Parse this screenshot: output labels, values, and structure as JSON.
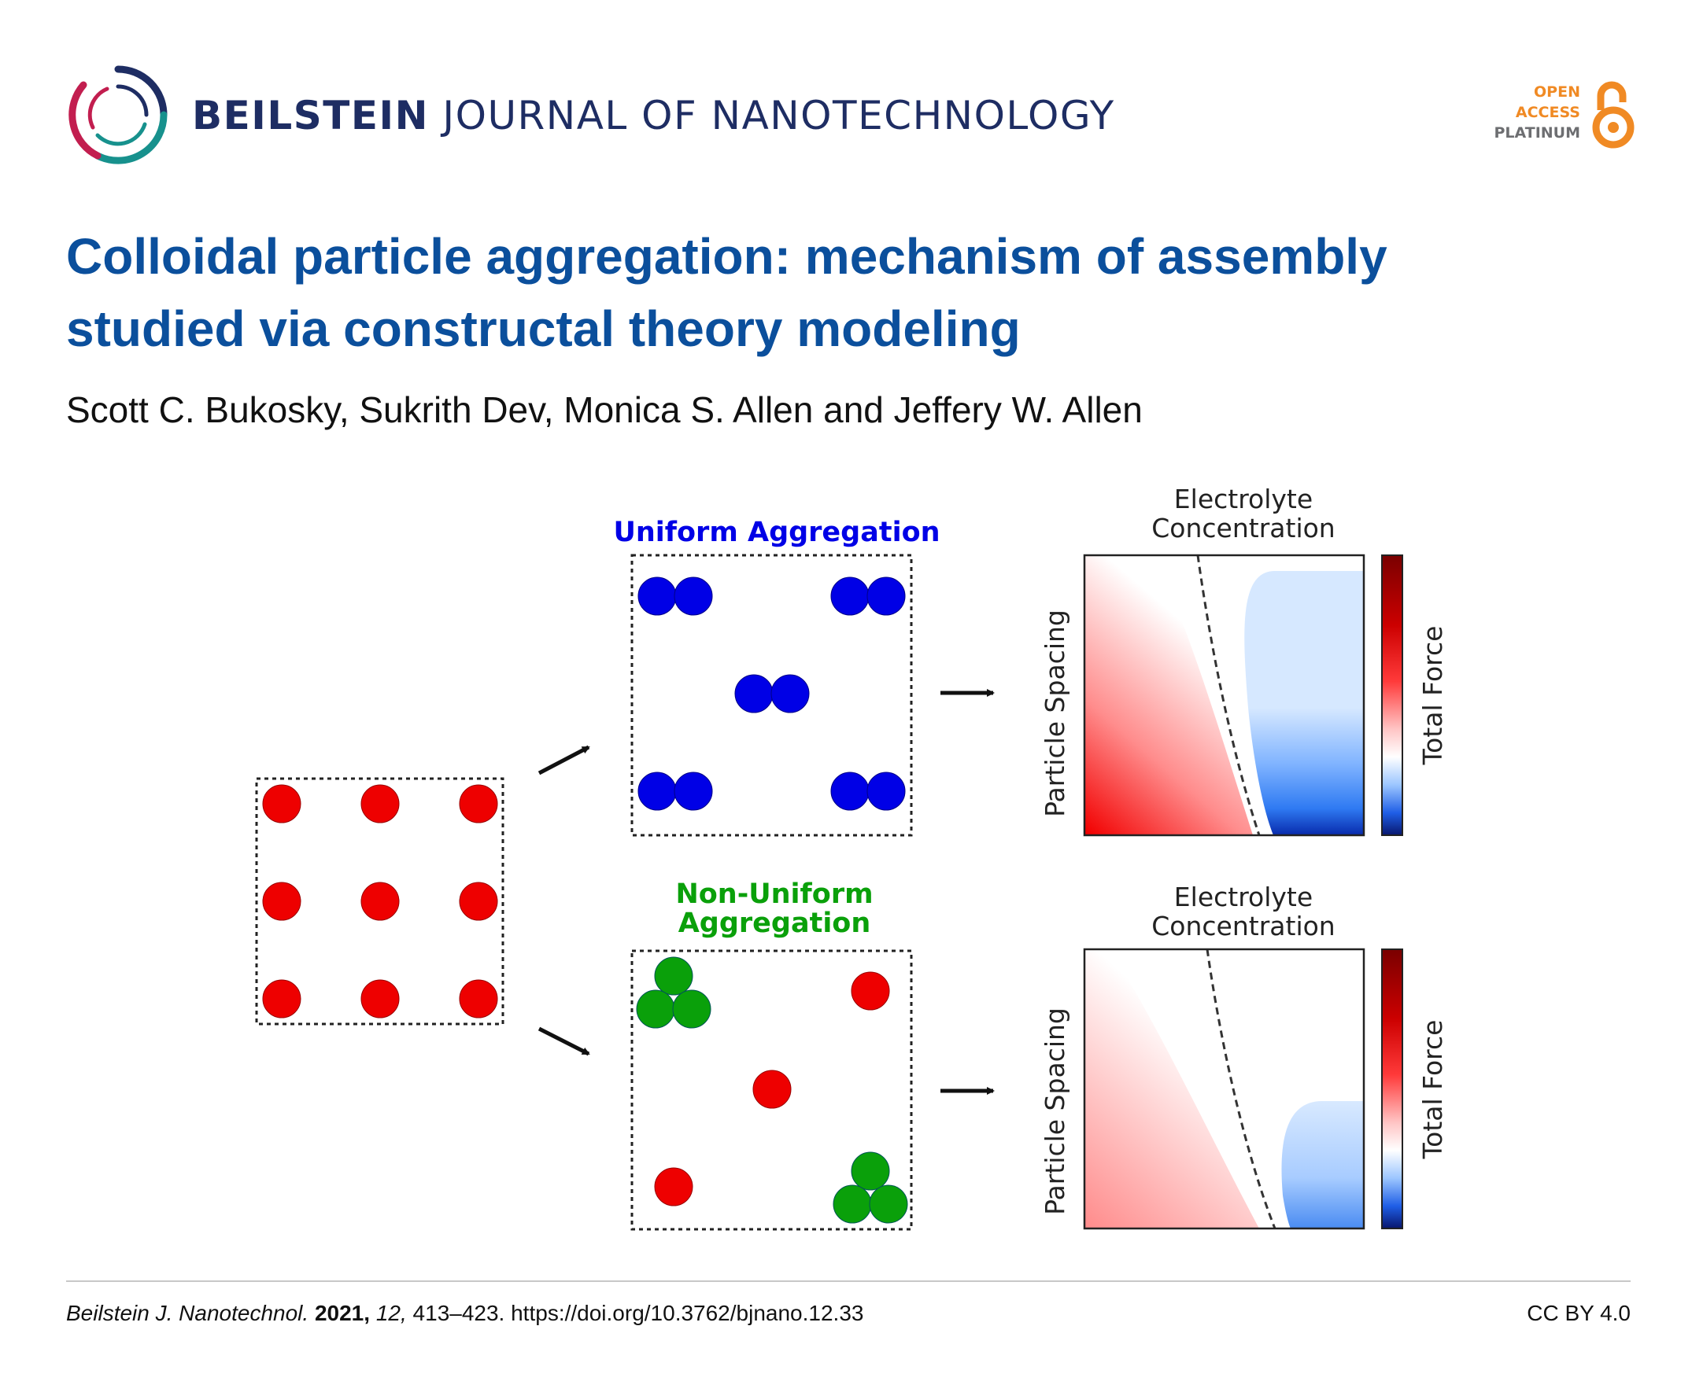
{
  "header": {
    "journal_bold": "BEILSTEIN",
    "journal_rest": "JOURNAL OF NANOTECHNOLOGY",
    "badge": {
      "line1": "OPEN",
      "line2": "ACCESS",
      "line3": "PLATINUM"
    }
  },
  "article": {
    "title": "Colloidal particle aggregation: mechanism of assembly studied via constructal theory modeling",
    "authors": "Scott C. Bukosky, Sukrith Dev, Monica S. Allen and Jeffery W. Allen"
  },
  "figure": {
    "uniform_label": "Uniform Aggregation",
    "nonuniform_label_line1": "Non-Uniform",
    "nonuniform_label_line2": "Aggregation",
    "plot_top": {
      "title_line1": "Electrolyte",
      "title_line2": "Concentration",
      "ylabel": "Particle Spacing",
      "colorbar_label": "Total Force"
    },
    "plot_bottom": {
      "title_line1": "Electrolyte",
      "title_line2": "Concentration",
      "ylabel": "Particle Spacing",
      "colorbar_label": "Total Force"
    },
    "colors": {
      "initial": "#ee0000",
      "uniform": "#0000e6",
      "nonuniform": "#0aa00a",
      "title": "#0b4f9c",
      "accent": "#f08a24"
    }
  },
  "footer": {
    "journal_abbrev": "Beilstein J. Nanotechnol.",
    "year": "2021,",
    "volume": "12,",
    "pages_doi": "413–423. https://doi.org/10.3762/bjnano.12.33",
    "license": "CC BY 4.0"
  }
}
